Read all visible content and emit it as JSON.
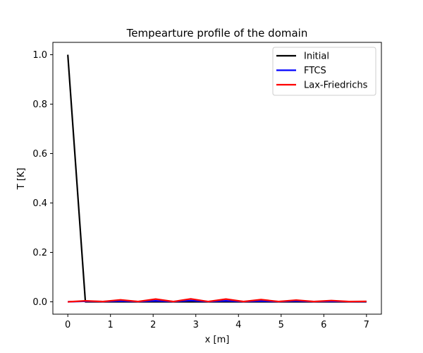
{
  "chart_data": {
    "type": "line",
    "title": "Tempearture profile of the domain",
    "xlabel": "x [m]",
    "ylabel": "T [K]",
    "xlim": [
      -0.35,
      7.35
    ],
    "ylim": [
      -0.05,
      1.05
    ],
    "xticks": [
      0,
      1,
      2,
      3,
      4,
      5,
      6,
      7
    ],
    "yticks": [
      0.0,
      0.2,
      0.4,
      0.6,
      0.8,
      1.0
    ],
    "xtick_labels": [
      "0",
      "1",
      "2",
      "3",
      "4",
      "5",
      "6",
      "7"
    ],
    "ytick_labels": [
      "0.0",
      "0.2",
      "0.4",
      "0.6",
      "0.8",
      "1.0"
    ],
    "grid": false,
    "legend_position": "top-right",
    "series": [
      {
        "name": "Initial",
        "color": "#000000",
        "x": [
          0,
          0.412,
          0.824,
          1.235,
          1.647,
          2.059,
          2.471,
          2.882,
          3.294,
          3.706,
          4.118,
          4.529,
          4.941,
          5.353,
          5.765,
          6.176,
          6.588,
          7.0
        ],
        "y": [
          1.0,
          0,
          0,
          0,
          0,
          0,
          0,
          0,
          0,
          0,
          0,
          0,
          0,
          0,
          0,
          0,
          0,
          0
        ]
      },
      {
        "name": "FTCS",
        "color": "#0000ff",
        "x": [
          0,
          0.412,
          0.824,
          1.235,
          1.647,
          2.059,
          2.471,
          2.882,
          3.294,
          3.706,
          4.118,
          4.529,
          4.941,
          5.353,
          5.765,
          6.176,
          6.588,
          7.0
        ],
        "y": [
          0,
          0.002,
          0.001,
          0.003,
          0.001,
          0.004,
          0.001,
          0.005,
          0.001,
          0.004,
          0.001,
          0.003,
          0.001,
          0.003,
          0.001,
          0.002,
          0.001,
          0.001
        ]
      },
      {
        "name": "Lax-Friedrichs",
        "color": "#ff0000",
        "x": [
          0,
          0.412,
          0.824,
          1.235,
          1.647,
          2.059,
          2.471,
          2.882,
          3.294,
          3.706,
          4.118,
          4.529,
          4.941,
          5.353,
          5.765,
          6.176,
          6.588,
          7.0
        ],
        "y": [
          0,
          0.004,
          0.001,
          0.008,
          0.001,
          0.011,
          0.001,
          0.012,
          0.001,
          0.011,
          0.001,
          0.009,
          0.001,
          0.007,
          0.001,
          0.005,
          0.001,
          0.002
        ]
      }
    ]
  }
}
